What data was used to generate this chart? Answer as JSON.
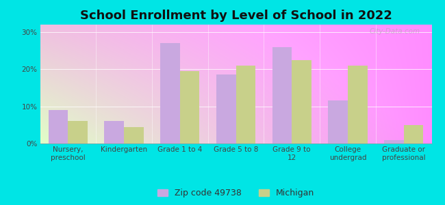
{
  "title": "School Enrollment by Level of School in 2022",
  "categories": [
    "Nursery,\npreschool",
    "Kindergarten",
    "Grade 1 to 4",
    "Grade 5 to 8",
    "Grade 9 to\n12",
    "College\nundergrad",
    "Graduate or\nprofessional"
  ],
  "zip_values": [
    9.0,
    6.0,
    27.0,
    18.5,
    26.0,
    11.5,
    1.0
  ],
  "michigan_values": [
    6.0,
    4.5,
    19.5,
    21.0,
    22.5,
    21.0,
    5.0
  ],
  "zip_color": "#c9a8e0",
  "michigan_color": "#c8d08a",
  "background_color": "#00e5e5",
  "grad_color_topleft": "#d8f0d0",
  "grad_color_bottomleft": "#c0e8b0",
  "grad_color_topright": "#e8f8e8",
  "grad_color_white": "#ffffff",
  "yticks": [
    0,
    10,
    20,
    30
  ],
  "ylim": [
    0,
    32
  ],
  "bar_width": 0.35,
  "legend_zip_label": "Zip code 49738",
  "legend_michigan_label": "Michigan",
  "title_fontsize": 13,
  "tick_fontsize": 7.5,
  "legend_fontsize": 9,
  "watermark": "City-Data.com"
}
